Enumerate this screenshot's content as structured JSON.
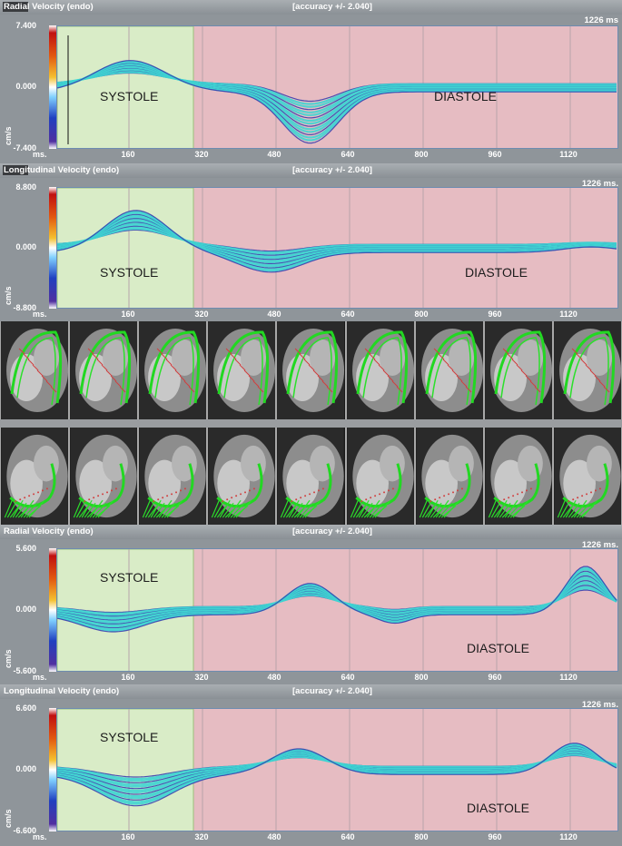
{
  "ui": {
    "accuracy_label": "[accuracy +/- 2.040]",
    "ms_label": "ms.",
    "unit": "cm/s",
    "systole_label": "SYSTOLE",
    "diastole_label": "DIASTOLE",
    "x_ticks": [
      "160",
      "320",
      "480",
      "640",
      "800",
      "960",
      "1120"
    ],
    "colors": {
      "systole_bg": "#d9ecc7",
      "diastole_bg": "#e6bcc2",
      "trace": "#3fd5d1",
      "trace_dark": "#3b3fae",
      "grid": "#b8a5ab"
    }
  },
  "panels": [
    {
      "title": "Radial Velocity (endo)",
      "duration": "1226 ms",
      "ymax_label": "7.400",
      "zero_label": "0.000",
      "ymin_label": "-7.400",
      "title_box": true
    },
    {
      "title": "Longitudinal Velocity (endo)",
      "duration": "1226 ms.",
      "ymax_label": "8.800",
      "zero_label": "0.000",
      "ymin_label": "-8.800",
      "title_box": true
    },
    {
      "title": "Radial Velocity (endo)",
      "duration": "1226 ms.",
      "ymax_label": "5.600",
      "zero_label": "0.000",
      "ymin_label": "-5.600",
      "title_box": false
    },
    {
      "title": "Longitudinal Velocity (endo)",
      "duration": "1226 ms.",
      "ymax_label": "6.600",
      "zero_label": "0.000",
      "ymin_label": "-6.600",
      "title_box": false
    }
  ],
  "image_rows": [
    {
      "name": "long-axis-frames",
      "count": 9
    },
    {
      "name": "four-chamber-frames",
      "count": 9
    }
  ]
}
